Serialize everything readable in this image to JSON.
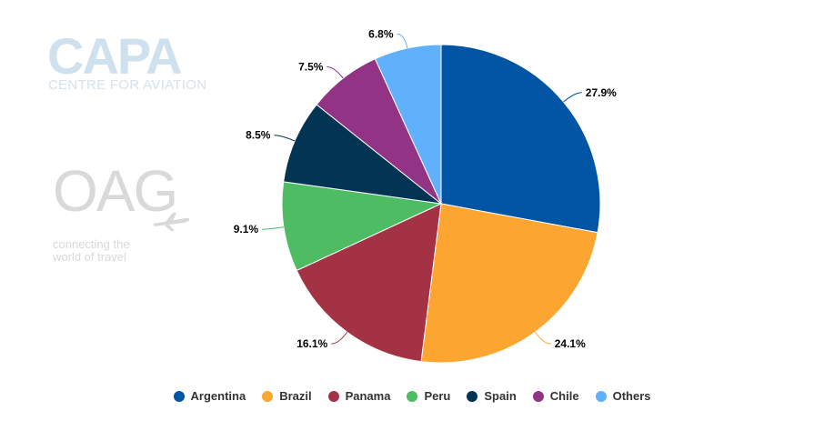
{
  "watermarks": {
    "capa_title": "CAPA",
    "capa_subtitle": "CENTRE FOR AVIATION",
    "oag_title": "OAG",
    "oag_tagline_1": "connecting the",
    "oag_tagline_2": "world of travel"
  },
  "chart_data": {
    "type": "pie",
    "title": "",
    "legend_placement": "bottom",
    "series": [
      {
        "name": "Argentina",
        "value": 27.9,
        "label": "27.9%",
        "color": "#0254a5"
      },
      {
        "name": "Brazil",
        "value": 24.1,
        "label": "24.1%",
        "color": "#fda531"
      },
      {
        "name": "Panama",
        "value": 16.1,
        "label": "16.1%",
        "color": "#a43245"
      },
      {
        "name": "Peru",
        "value": 9.1,
        "label": "9.1%",
        "color": "#4dbc62"
      },
      {
        "name": "Spain",
        "value": 8.5,
        "label": "8.5%",
        "color": "#033454"
      },
      {
        "name": "Chile",
        "value": 7.5,
        "label": "7.5%",
        "color": "#933385"
      },
      {
        "name": "Others",
        "value": 6.8,
        "label": "6.8%",
        "color": "#61b0fb"
      }
    ]
  }
}
